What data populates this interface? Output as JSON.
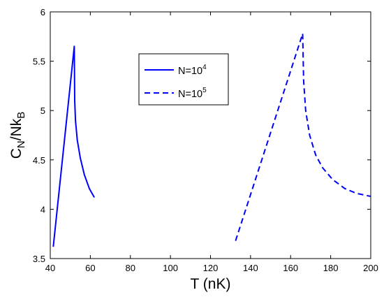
{
  "chart_data": {
    "type": "line",
    "xlabel": "T (nK)",
    "ylabel": {
      "main": "C",
      "sub1": "N",
      "mid": "/Nk",
      "sub2": "B"
    },
    "xlim": [
      40,
      200
    ],
    "ylim": [
      3.5,
      6
    ],
    "xticks": [
      40,
      60,
      80,
      100,
      120,
      140,
      160,
      180,
      200
    ],
    "yticks": [
      3.5,
      4,
      4.5,
      5,
      5.5,
      6
    ],
    "grid": false,
    "legend_position": "upper-middle",
    "series": [
      {
        "name": "N=10^4",
        "legend": {
          "base": "N=10",
          "exp": "4"
        },
        "style": "solid",
        "color": "#0000ff",
        "points": [
          [
            41.5,
            3.62
          ],
          [
            52.0,
            5.65
          ],
          [
            52.2,
            5.1
          ],
          [
            52.6,
            4.9
          ],
          [
            53.5,
            4.7
          ],
          [
            55.0,
            4.52
          ],
          [
            57.0,
            4.35
          ],
          [
            59.5,
            4.21
          ],
          [
            62.0,
            4.12
          ]
        ]
      },
      {
        "name": "N=10^5",
        "legend": {
          "base": "N=10",
          "exp": "5"
        },
        "style": "dashed",
        "color": "#0000ff",
        "points": [
          [
            132.5,
            3.68
          ],
          [
            166.0,
            5.78
          ],
          [
            166.5,
            5.3
          ],
          [
            167.5,
            5.0
          ],
          [
            169.5,
            4.75
          ],
          [
            172.5,
            4.55
          ],
          [
            176.0,
            4.42
          ],
          [
            181.0,
            4.3
          ],
          [
            187.0,
            4.21
          ],
          [
            193.0,
            4.16
          ],
          [
            200.0,
            4.13
          ]
        ]
      }
    ]
  }
}
